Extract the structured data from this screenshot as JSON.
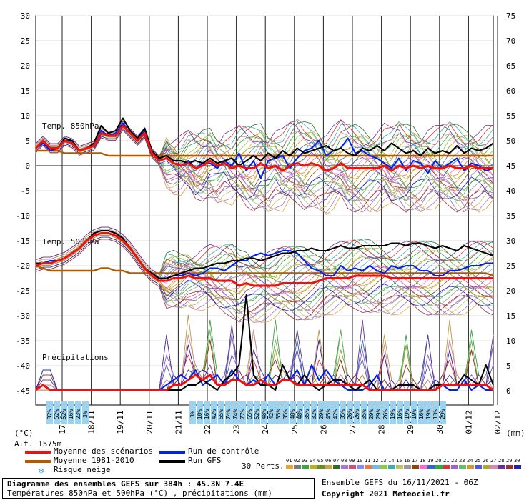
{
  "chart_data": {
    "type": "line",
    "title": "Diagramme des ensembles GEFS sur 384h : 45.3N 7.4E",
    "subtitle": "Températures 850hPa et 500hPa (°C) , précipitations (mm)",
    "left_axis": {
      "ticks": [
        30,
        25,
        20,
        15,
        10,
        5,
        0,
        -5,
        -10,
        -15,
        -20,
        -25,
        -30,
        -35,
        -40,
        -45
      ],
      "unit": "(°C)"
    },
    "right_axis": {
      "ticks": [
        75,
        70,
        65,
        60,
        55,
        50,
        45,
        40,
        35,
        30,
        25,
        20,
        15,
        10,
        5,
        0
      ],
      "unit": "(mm)"
    },
    "x_labels": [
      "17/11",
      "18/11",
      "19/11",
      "20/11",
      "21/11",
      "22/11",
      "23/11",
      "24/11",
      "25/11",
      "26/11",
      "27/11",
      "28/11",
      "29/11",
      "30/11",
      "01/12",
      "02/12"
    ],
    "altitude_label": "Alt. 1575m",
    "panel_labels": {
      "t850": "Temp. 850hPa",
      "t500": "Temp. 500hPa",
      "precip": "Précipitations"
    },
    "snow_risk_left": [
      "32%",
      "52%",
      "52%",
      "16%",
      "23%",
      "3%"
    ],
    "snow_risk_right": [
      "3%",
      "10%",
      "16%",
      "42%",
      "65%",
      "74%",
      "74%",
      "77%",
      "65%",
      "52%",
      "48%",
      "42%",
      "35%",
      "35%",
      "48%",
      "48%",
      "35%",
      "32%",
      "29%",
      "45%",
      "42%",
      "35%",
      "26%",
      "26%",
      "35%",
      "29%",
      "29%",
      "26%",
      "19%",
      "16%",
      "19%",
      "19%",
      "16%",
      "19%",
      "13%",
      "29%"
    ],
    "series": [
      {
        "name": "Moyenne des scénarios",
        "color": "#ee1111",
        "t850": [
          3.5,
          5.0,
          3.5,
          3.5,
          5.0,
          4.5,
          3.0,
          3.5,
          4.0,
          6.5,
          6.0,
          6.0,
          8.0,
          6.5,
          5.0,
          6.5,
          2.5,
          1.0,
          1.5,
          0.5,
          0.0,
          0.5,
          -0.5,
          0.0,
          1.0,
          0.0,
          0.5,
          -0.5,
          0.0,
          -0.5,
          -0.5,
          0.5,
          -0.5,
          0.0,
          -1.0,
          0.0,
          0.5,
          0.0,
          0.5,
          0.0,
          -1.0,
          -0.5,
          0.5,
          -0.5,
          -0.5,
          -0.5,
          -0.5,
          -0.5,
          0.0,
          -1.0,
          0.0,
          -0.5,
          0.0,
          -0.5,
          0.0,
          -0.5,
          -0.5,
          0.0,
          -0.5,
          -0.5,
          0.0,
          -0.5,
          -0.5,
          -0.5
        ],
        "t500": [
          -20.0,
          -19.5,
          -19.5,
          -19.0,
          -18.5,
          -17.5,
          -16.5,
          -15.0,
          -14.0,
          -13.5,
          -13.5,
          -14.0,
          -15.0,
          -16.5,
          -18.5,
          -20.5,
          -22.0,
          -23.0,
          -23.0,
          -22.5,
          -22.5,
          -22.0,
          -22.5,
          -22.5,
          -22.5,
          -23.0,
          -23.0,
          -23.0,
          -24.0,
          -23.5,
          -24.0,
          -24.0,
          -24.0,
          -24.0,
          -23.5,
          -23.5,
          -23.5,
          -23.5,
          -23.5,
          -23.0,
          -22.5,
          -22.5,
          -22.5,
          -22.5,
          -22.0,
          -22.0,
          -22.0,
          -22.0,
          -22.0,
          -22.5,
          -22.5,
          -22.5,
          -22.5,
          -22.5,
          -22.5,
          -22.5,
          -22.5,
          -22.5,
          -22.5,
          -22.5,
          -22.5,
          -22.5,
          -22.5,
          -22.5
        ],
        "precip": [
          0,
          1,
          0,
          0,
          0,
          0,
          0,
          0,
          0,
          0,
          0,
          0,
          0,
          0,
          0,
          0,
          0,
          0,
          0,
          1,
          1,
          2,
          3,
          2,
          3,
          1,
          1,
          2,
          2,
          1,
          1,
          2,
          1,
          1,
          2,
          2,
          1,
          1,
          1,
          1,
          1,
          1,
          1,
          1,
          1,
          1,
          0,
          0,
          0,
          0,
          0,
          0,
          0,
          0,
          0,
          0,
          1,
          1,
          1,
          1,
          1,
          1,
          1,
          0
        ]
      },
      {
        "name": "Moyenne 1981-2010",
        "color": "#b25a00",
        "t850": [
          3.0,
          3.0,
          3.0,
          3.0,
          2.5,
          2.5,
          2.5,
          2.5,
          2.5,
          2.5,
          2.0,
          2.0,
          2.0,
          2.0,
          2.0,
          2.0,
          2.0,
          2.0,
          2.0,
          2.0,
          2.0,
          2.0,
          2.0,
          2.0,
          2.0,
          2.0,
          2.0,
          2.0,
          2.0,
          2.0,
          2.0,
          2.0,
          2.0,
          2.0,
          2.0,
          2.0,
          2.0,
          2.0,
          2.0,
          2.0,
          2.0,
          2.0,
          2.0,
          2.0,
          2.0,
          2.0,
          2.0,
          2.0,
          2.0,
          2.0,
          2.0,
          2.0,
          2.0,
          2.0,
          2.0,
          2.0,
          2.0,
          2.0,
          2.0,
          2.0,
          2.0,
          2.0,
          2.0,
          2.0
        ],
        "t500": [
          -20.0,
          -20.5,
          -21.0,
          -21.0,
          -21.0,
          -21.0,
          -21.0,
          -21.0,
          -21.0,
          -20.5,
          -20.5,
          -21.0,
          -21.0,
          -21.5,
          -21.5,
          -21.5,
          -21.5,
          -21.5,
          -21.5,
          -21.5,
          -21.5,
          -21.5,
          -21.5,
          -21.5,
          -21.5,
          -21.5,
          -21.5,
          -21.5,
          -21.5,
          -21.5,
          -21.5,
          -21.5,
          -21.5,
          -21.5,
          -21.5,
          -21.5,
          -21.5,
          -21.5,
          -21.5,
          -21.5,
          -21.5,
          -21.5,
          -21.5,
          -21.5,
          -21.5,
          -21.5,
          -21.5,
          -21.5,
          -21.5,
          -21.5,
          -21.5,
          -21.5,
          -21.5,
          -21.5,
          -21.5,
          -21.5,
          -21.5,
          -21.5,
          -21.5,
          -21.5,
          -21.5,
          -21.5,
          -21.5,
          -22.0
        ]
      },
      {
        "name": "Run de contrôle",
        "color": "#0022ee",
        "t850": [
          3.5,
          4.5,
          3.0,
          3.5,
          5.0,
          5.0,
          3.0,
          3.5,
          4.0,
          7.0,
          6.0,
          6.5,
          8.5,
          6.5,
          5.0,
          7.0,
          2.5,
          1.0,
          1.5,
          0.5,
          0.0,
          1.0,
          -0.5,
          0.5,
          0.5,
          -0.5,
          1.0,
          0.0,
          2.5,
          -1.0,
          1.0,
          -2.5,
          1.0,
          1.5,
          2.0,
          -0.5,
          1.5,
          3.0,
          3.5,
          5.0,
          2.0,
          3.0,
          3.5,
          5.5,
          2.5,
          3.0,
          2.0,
          1.5,
          0.5,
          -0.5,
          1.5,
          -1.0,
          1.0,
          0.5,
          -1.5,
          1.0,
          -0.5,
          0.5,
          1.5,
          -1.0,
          0.5,
          0.0,
          -1.0,
          -0.5
        ],
        "t500": [
          -19.5,
          -19.5,
          -19.0,
          -19.0,
          -18.5,
          -17.5,
          -16.5,
          -15.0,
          -14.0,
          -13.5,
          -13.5,
          -14.0,
          -15.0,
          -16.5,
          -18.5,
          -20.5,
          -22.0,
          -22.5,
          -22.5,
          -22.0,
          -22.0,
          -21.5,
          -22.0,
          -21.5,
          -20.5,
          -20.5,
          -21.0,
          -20.0,
          -19.0,
          -19.0,
          -18.0,
          -17.5,
          -18.0,
          -17.5,
          -17.0,
          -17.0,
          -17.5,
          -19.0,
          -20.5,
          -21.0,
          -22.0,
          -22.0,
          -20.0,
          -21.0,
          -20.5,
          -21.0,
          -20.0,
          -21.0,
          -21.5,
          -20.0,
          -20.5,
          -20.0,
          -20.0,
          -21.0,
          -21.0,
          -22.0,
          -22.0,
          -21.0,
          -21.0,
          -20.5,
          -20.0,
          -20.0,
          -19.5,
          -19.5
        ],
        "precip": [
          0,
          1,
          0,
          0,
          0,
          0,
          0,
          0,
          0,
          0,
          0,
          0,
          0,
          0,
          0,
          0,
          0,
          0,
          1,
          2,
          3,
          2,
          4,
          1,
          2,
          3,
          1,
          4,
          2,
          1,
          2,
          1,
          3,
          1,
          2,
          2,
          4,
          1,
          5,
          2,
          4,
          2,
          1,
          0,
          0,
          0,
          1,
          3,
          0,
          0,
          0,
          0,
          0,
          0,
          0,
          0,
          1,
          0,
          0,
          2,
          0,
          1,
          0,
          0
        ]
      },
      {
        "name": "Run GFS",
        "color": "#000000",
        "t850": [
          3.5,
          5.0,
          3.5,
          3.5,
          5.5,
          5.0,
          3.0,
          3.5,
          4.5,
          8.0,
          6.5,
          7.0,
          9.5,
          7.0,
          5.5,
          7.5,
          3.0,
          1.5,
          2.0,
          1.0,
          1.0,
          0.5,
          1.0,
          0.5,
          1.5,
          0.5,
          1.0,
          1.5,
          0.0,
          1.0,
          2.0,
          1.0,
          2.5,
          1.5,
          3.0,
          2.0,
          3.5,
          2.5,
          3.0,
          3.5,
          4.0,
          3.0,
          3.5,
          2.5,
          2.0,
          3.5,
          3.0,
          4.0,
          3.0,
          4.5,
          3.5,
          2.5,
          3.0,
          2.0,
          3.5,
          2.5,
          3.0,
          2.5,
          4.0,
          2.5,
          3.5,
          3.0,
          3.5,
          4.5
        ],
        "t500": [
          -19.5,
          -19.5,
          -19.5,
          -19.0,
          -18.5,
          -17.5,
          -16.5,
          -15.0,
          -13.5,
          -13.0,
          -13.0,
          -13.5,
          -14.5,
          -16.5,
          -18.5,
          -20.5,
          -21.5,
          -22.5,
          -22.5,
          -22.0,
          -21.5,
          -21.0,
          -20.5,
          -20.5,
          -20.0,
          -19.5,
          -19.5,
          -19.0,
          -19.0,
          -18.5,
          -18.5,
          -19.0,
          -18.5,
          -18.0,
          -17.5,
          -17.5,
          -17.0,
          -17.0,
          -16.5,
          -17.0,
          -17.0,
          -16.5,
          -16.0,
          -16.5,
          -16.5,
          -16.0,
          -16.0,
          -16.0,
          -16.0,
          -15.5,
          -15.5,
          -16.0,
          -15.5,
          -15.5,
          -16.0,
          -16.5,
          -16.0,
          -16.5,
          -17.0,
          -16.0,
          -16.5,
          -17.0,
          -17.5,
          -18.0
        ],
        "precip": [
          0,
          1,
          0,
          0,
          0,
          0,
          0,
          0,
          0,
          0,
          0,
          0,
          0,
          0,
          0,
          0,
          0,
          0,
          0,
          0,
          0,
          1,
          1,
          2,
          1,
          0,
          2,
          3,
          5,
          19,
          3,
          1,
          1,
          0,
          5,
          2,
          1,
          3,
          1,
          0,
          1,
          2,
          2,
          1,
          0,
          1,
          2,
          0,
          0,
          0,
          1,
          1,
          1,
          0,
          0,
          1,
          1,
          1,
          1,
          3,
          2,
          1,
          5,
          1
        ]
      }
    ],
    "ensemble_label": "30 Perts.",
    "ensemble_ids": [
      "01",
      "02",
      "03",
      "04",
      "05",
      "06",
      "07",
      "08",
      "09",
      "10",
      "11",
      "12",
      "13",
      "14",
      "15",
      "16",
      "17",
      "18",
      "19",
      "20",
      "21",
      "22",
      "23",
      "24",
      "25",
      "26",
      "27",
      "28",
      "29",
      "30"
    ],
    "ensemble_colors": [
      "#e8a33a",
      "#7a7a7a",
      "#3fa34a",
      "#b8b02c",
      "#6b8e23",
      "#c7a34a",
      "#2d6b2d",
      "#aa77cc",
      "#cc5577",
      "#8888ff",
      "#ee7744",
      "#7ab7e6",
      "#88cc44",
      "#44aaaa",
      "#c0c070",
      "#999999",
      "#8b4513",
      "#ff66cc",
      "#3366cc",
      "#33aa33",
      "#dd3333",
      "#9966cc",
      "#66bb66",
      "#cc9933",
      "#5555dd",
      "#aaaa33",
      "#dd88aa",
      "#663399",
      "#993333",
      "#2222aa"
    ],
    "snow_label": "Risque neige",
    "run_info": "Ensemble GEFS du 16/11/2021 - 06Z",
    "copyright": "Copyright 2021 Meteociel.fr"
  }
}
